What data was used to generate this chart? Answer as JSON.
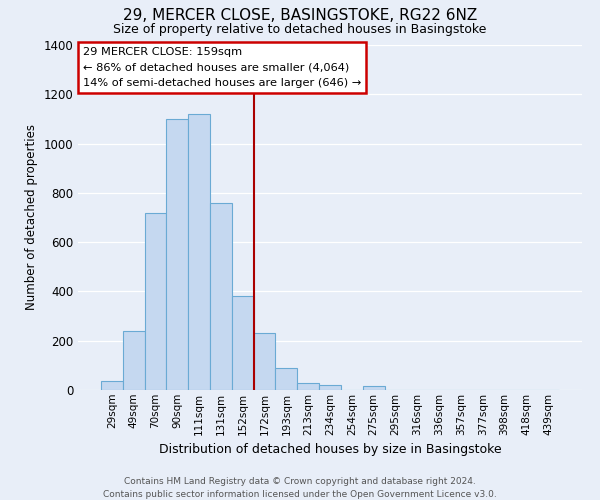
{
  "title": "29, MERCER CLOSE, BASINGSTOKE, RG22 6NZ",
  "subtitle": "Size of property relative to detached houses in Basingstoke",
  "xlabel": "Distribution of detached houses by size in Basingstoke",
  "ylabel": "Number of detached properties",
  "bar_labels": [
    "29sqm",
    "49sqm",
    "70sqm",
    "90sqm",
    "111sqm",
    "131sqm",
    "152sqm",
    "172sqm",
    "193sqm",
    "213sqm",
    "234sqm",
    "254sqm",
    "275sqm",
    "295sqm",
    "316sqm",
    "336sqm",
    "357sqm",
    "377sqm",
    "398sqm",
    "418sqm",
    "439sqm"
  ],
  "bar_heights": [
    35,
    240,
    720,
    1100,
    1120,
    760,
    380,
    230,
    90,
    30,
    20,
    0,
    15,
    0,
    0,
    0,
    0,
    0,
    0,
    0,
    0
  ],
  "bar_color": "#c5d8f0",
  "bar_edge_color": "#6aaad4",
  "vline_color": "#aa0000",
  "ylim": [
    0,
    1400
  ],
  "yticks": [
    0,
    200,
    400,
    600,
    800,
    1000,
    1200,
    1400
  ],
  "annotation_title": "29 MERCER CLOSE: 159sqm",
  "annotation_line1": "← 86% of detached houses are smaller (4,064)",
  "annotation_line2": "14% of semi-detached houses are larger (646) →",
  "annotation_box_color": "#ffffff",
  "annotation_box_edge": "#cc0000",
  "footer_line1": "Contains HM Land Registry data © Crown copyright and database right 2024.",
  "footer_line2": "Contains public sector information licensed under the Open Government Licence v3.0.",
  "background_color": "#e8eef8",
  "plot_background": "#e8eef8",
  "grid_color": "#ffffff"
}
